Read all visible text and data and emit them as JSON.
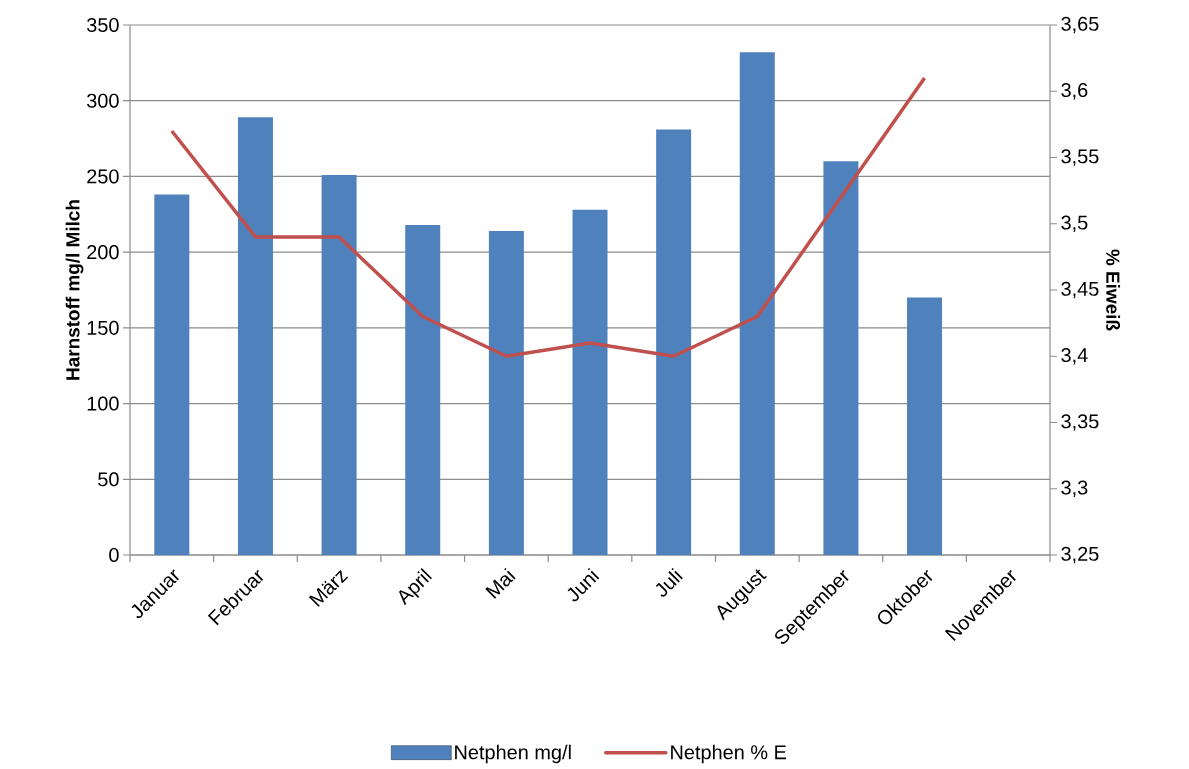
{
  "chart_data": {
    "type": "bar",
    "ylabel": "Harnstoff mg/l Milch",
    "y2label": "% Eiweiß",
    "categories": [
      "Januar",
      "Februar",
      "März",
      "April",
      "Mai",
      "Juni",
      "Juli",
      "August",
      "September",
      "Oktober",
      "November"
    ],
    "series": [
      {
        "name": "Netphen mg/l",
        "color": "#4f81bd",
        "values": [
          238,
          289,
          251,
          218,
          214,
          228,
          281,
          332,
          260,
          170,
          null
        ]
      },
      {
        "name": "Netphen % E",
        "type": "line",
        "axis": "y2",
        "color": "#c0504d",
        "values": [
          3.57,
          3.49,
          3.49,
          3.43,
          3.4,
          3.41,
          3.4,
          3.43,
          3.52,
          3.61,
          null
        ]
      }
    ],
    "ylim": [
      0,
      350
    ],
    "yticks": [
      0,
      50,
      100,
      150,
      200,
      250,
      300,
      350
    ],
    "y2lim": [
      3.25,
      3.65
    ],
    "y2ticks": [
      {
        "value": 3.25,
        "label": "3,25"
      },
      {
        "value": 3.3,
        "label": "3,3"
      },
      {
        "value": 3.35,
        "label": "3,35"
      },
      {
        "value": 3.4,
        "label": "3,4"
      },
      {
        "value": 3.45,
        "label": "3,45"
      },
      {
        "value": 3.5,
        "label": "3,5"
      },
      {
        "value": 3.55,
        "label": "3,55"
      },
      {
        "value": 3.6,
        "label": "3,6"
      },
      {
        "value": 3.65,
        "label": "3,65"
      }
    ],
    "grid": "y",
    "legend": "bottom",
    "marker": "none"
  }
}
